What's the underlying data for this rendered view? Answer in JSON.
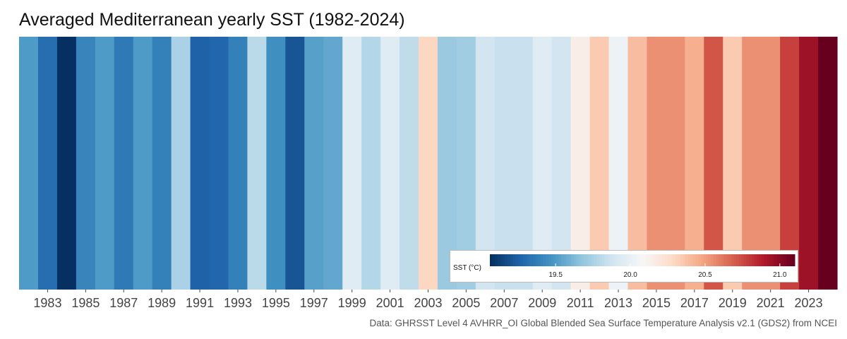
{
  "chart_data": {
    "type": "heatmap",
    "title": "Averaged Mediterranean yearly SST (1982-2024)",
    "caption": "Data: GHRSST Level 4 AVHRR_OI Global Blended Sea Surface Temperature Analysis v2.1 (GDS2) from NCEI",
    "xlabel": "",
    "ylabel": "",
    "years": [
      1982,
      1983,
      1984,
      1985,
      1986,
      1987,
      1988,
      1989,
      1990,
      1991,
      1992,
      1993,
      1994,
      1995,
      1996,
      1997,
      1998,
      1999,
      2000,
      2001,
      2002,
      2003,
      2004,
      2005,
      2006,
      2007,
      2008,
      2009,
      2010,
      2011,
      2012,
      2013,
      2014,
      2015,
      2016,
      2017,
      2018,
      2019,
      2020,
      2021,
      2022,
      2023,
      2024
    ],
    "values": [
      19.5,
      19.3,
      19.06,
      19.4,
      19.5,
      19.35,
      19.5,
      19.38,
      19.75,
      19.25,
      19.27,
      19.38,
      19.8,
      19.45,
      19.2,
      19.52,
      19.55,
      19.95,
      19.78,
      19.95,
      19.82,
      20.3,
      19.7,
      19.72,
      19.88,
      19.85,
      19.85,
      19.95,
      19.88,
      20.15,
      20.35,
      20.02,
      20.4,
      20.55,
      20.55,
      20.45,
      20.72,
      20.35,
      20.55,
      20.55,
      20.78,
      20.95,
      21.1
    ],
    "x_ticks": [
      "1983",
      "1985",
      "1987",
      "1989",
      "1991",
      "1993",
      "1995",
      "1997",
      "1999",
      "2001",
      "2003",
      "2005",
      "2007",
      "2009",
      "2011",
      "2013",
      "2015",
      "2017",
      "2019",
      "2021",
      "2023"
    ],
    "legend": {
      "title": "SST (°C)",
      "ticks": [
        "19.5",
        "20.0",
        "20.5",
        "21.0"
      ],
      "range": [
        19.06,
        21.1
      ],
      "colormap": "RdBu_r",
      "placement": "bottom-right"
    }
  }
}
